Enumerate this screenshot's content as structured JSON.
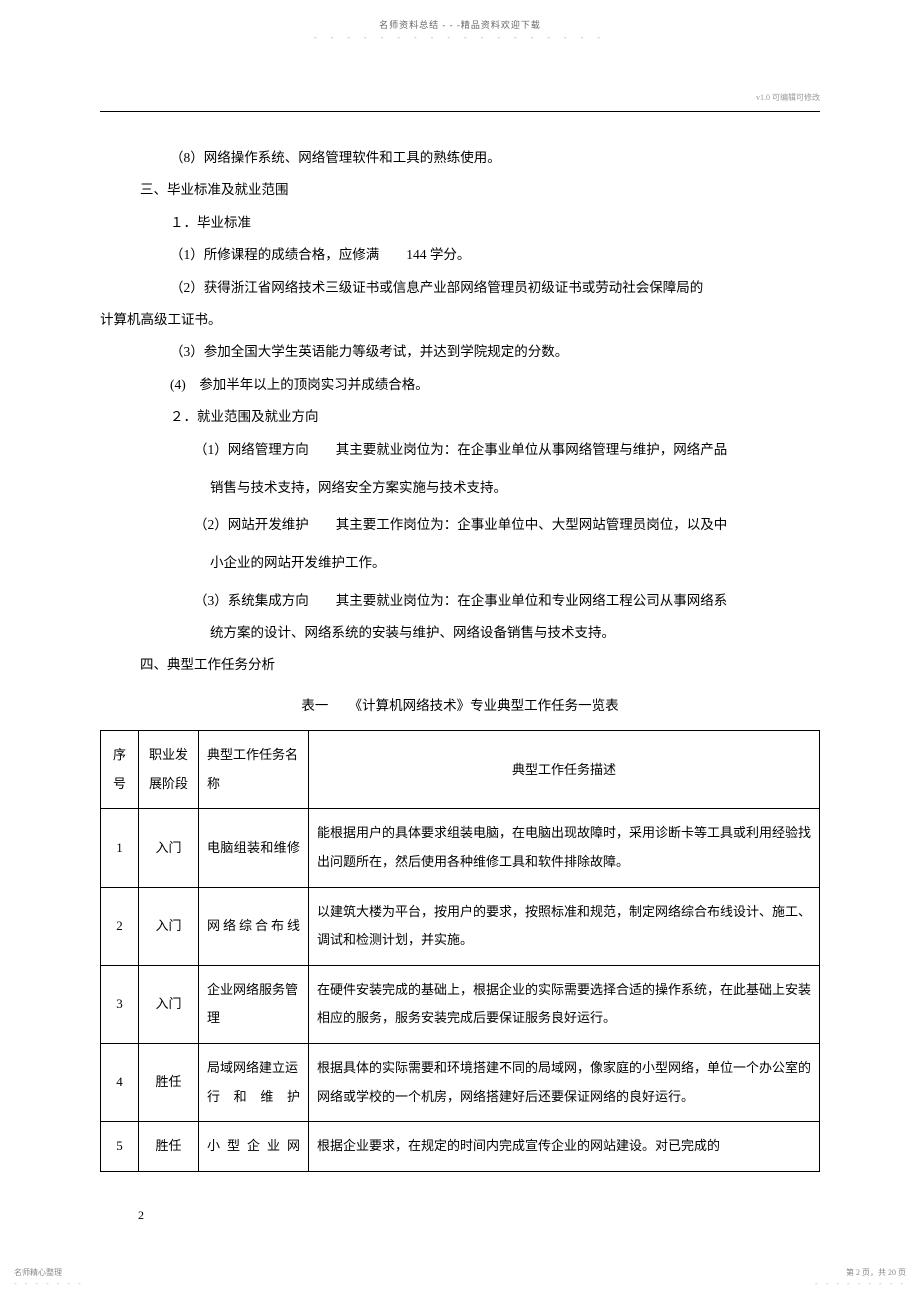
{
  "header": {
    "text": "名师资料总结 - - -精品资料欢迎下载",
    "dots": "- - - - - - - - - - - - - - - - - -"
  },
  "watermark": "v1.0  可编辑可修改",
  "body": {
    "p1": "（8）网络操作系统、网络管理软件和工具的熟练使用。",
    "s3_title": "三、毕业标准及就业范围",
    "s3_1": "１．毕业标准",
    "s3_1_1": "（1）所修课程的成绩合格，应修满　　144 学分。",
    "s3_1_2a": "（2）获得浙江省网络技术三级证书或信息产业部网络管理员初级证书或劳动社会保障局的",
    "s3_1_2b": "计算机高级工证书。",
    "s3_1_3": "（3）参加全国大学生英语能力等级考试，并达到学院规定的分数。",
    "s3_1_4": "(4)　参加半年以上的顶岗实习并成绩合格。",
    "s3_2": "２．就业范围及就业方向",
    "s3_2_1a": "（1）网络管理方向　　其主要就业岗位为：在企事业单位从事网络管理与维护，网络产品",
    "s3_2_1b": "销售与技术支持，网络安全方案实施与技术支持。",
    "s3_2_2a": "（2）网站开发维护　　其主要工作岗位为：企事业单位中、大型网站管理员岗位，以及中",
    "s3_2_2b": "小企业的网站开发维护工作。",
    "s3_2_3a": "（3）系统集成方向　　其主要就业岗位为：在企事业单位和专业网络工程公司从事网络系",
    "s3_2_3b": "统方案的设计、网络系统的安装与维护、网络设备销售与技术支持。",
    "s4_title": "四、典型工作任务分析",
    "table_title": "表一　　《计算机网络技术》专业典型工作任务一览表"
  },
  "table": {
    "headers": {
      "seq": "序号",
      "stage": "职业发展阶段",
      "task": "典型工作任务名称",
      "desc": "典型工作任务描述"
    },
    "rows": [
      {
        "seq": "1",
        "stage": "入门",
        "task": "电脑组装和维修",
        "desc": "能根据用户的具体要求组装电脑，在电脑出现故障时，采用诊断卡等工具或利用经验找出问题所在，然后使用各种维修工具和软件排除故障。"
      },
      {
        "seq": "2",
        "stage": "入门",
        "task": "网络综合布线",
        "desc": "以建筑大楼为平台，按用户的要求，按照标准和规范，制定网络综合布线设计、施工、调试和检测计划，并实施。"
      },
      {
        "seq": "3",
        "stage": "入门",
        "task": "企业网络服务管理",
        "desc": "在硬件安装完成的基础上，根据企业的实际需要选择合适的操作系统，在此基础上安装相应的服务，服务安装完成后要保证服务良好运行。"
      },
      {
        "seq": "4",
        "stage": "胜任",
        "task": "局域网络建立运行和维护",
        "desc": "根据具体的实际需要和环境搭建不同的局域网，像家庭的小型网络，单位一个办公室的网络或学校的一个机房，网络搭建好后还要保证网络的良好运行。"
      },
      {
        "seq": "5",
        "stage": "胜任",
        "task": "小型企业网",
        "desc": "根据企业要求，在规定的时间内完成宣传企业的网站建设。对已完成的"
      }
    ]
  },
  "page_num": "2",
  "footer": {
    "left": "名师精心整理",
    "right": "第 2 页，共 20 页",
    "dots": "- - - - - - -",
    "dots_r": "- - - - - - - - -"
  }
}
